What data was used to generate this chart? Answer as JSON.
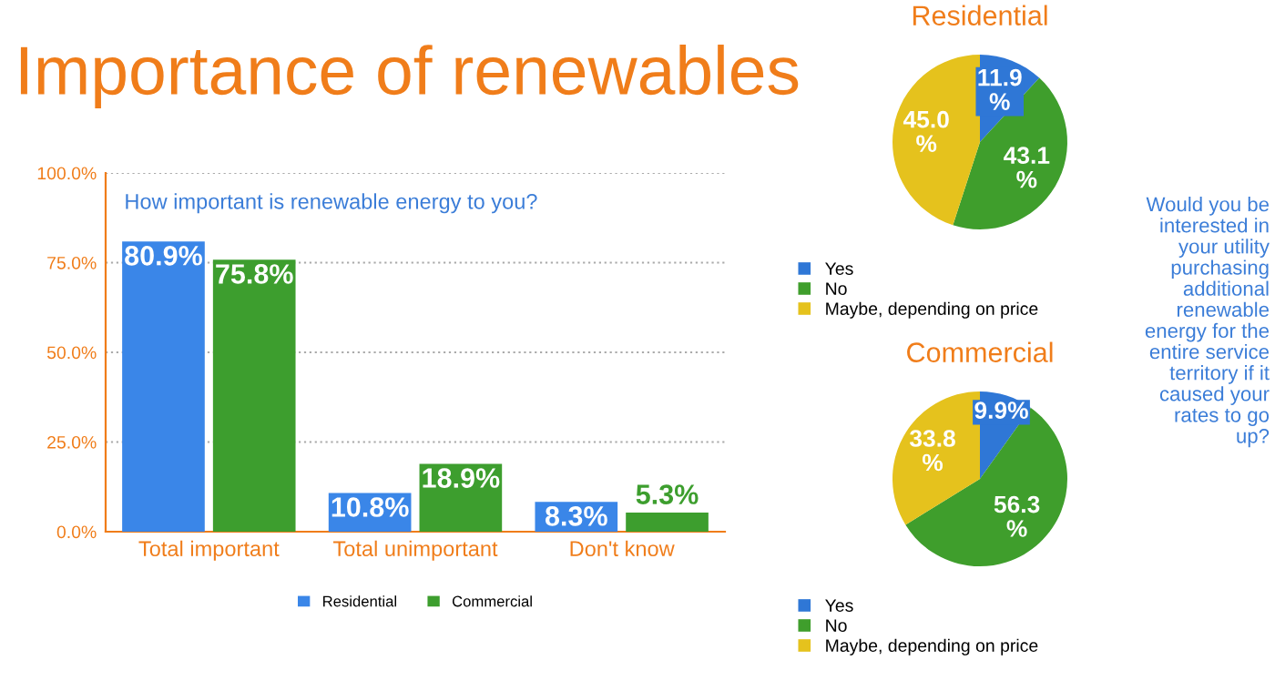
{
  "chart_data": [
    {
      "type": "bar",
      "title": "Importance of renewables",
      "subtitle": "How important is renewable energy to you?",
      "categories": [
        "Total important",
        "Total unimportant",
        "Don't know"
      ],
      "series": [
        {
          "name": "Residential",
          "color": "#3a86e8",
          "values": [
            80.9,
            10.8,
            8.3
          ],
          "value_labels": [
            "80.9%",
            "10.8%",
            "8.3%"
          ]
        },
        {
          "name": "Commercial",
          "color": "#3d9e2e",
          "values": [
            75.8,
            18.9,
            5.3
          ],
          "value_labels": [
            "75.8%",
            "18.9%",
            "5.3%"
          ]
        }
      ],
      "ylim": [
        0,
        100
      ],
      "yticks": [
        {
          "value": 0,
          "label": "0.0%"
        },
        {
          "value": 25,
          "label": "25.0%"
        },
        {
          "value": 50,
          "label": "50.0%"
        },
        {
          "value": 75,
          "label": "75.0%"
        },
        {
          "value": 100,
          "label": "100.0%"
        }
      ],
      "grid": "y",
      "legend": "bottom"
    },
    {
      "type": "pie",
      "title": "Residential",
      "categories": [
        "Yes",
        "No",
        "Maybe, depending on price"
      ],
      "values": [
        11.9,
        43.1,
        45.0
      ],
      "value_labels": [
        "11.9\n%",
        "43.1\n%",
        "45.0\n%"
      ],
      "colors": [
        "#2f77d6",
        "#3f9e2c",
        "#e5c21d"
      ],
      "legend": "bottom left"
    },
    {
      "type": "pie",
      "title": "Commercial",
      "categories": [
        "Yes",
        "No",
        "Maybe, depending on price"
      ],
      "values": [
        9.9,
        56.3,
        33.8
      ],
      "value_labels": [
        "9.9%",
        "56.3\n%",
        "33.8\n%"
      ],
      "colors": [
        "#2f77d6",
        "#3f9e2c",
        "#e5c21d"
      ],
      "legend": "bottom left"
    },
    {
      "type": "other",
      "annotations": [
        "Would you be\ninterested in\nyour utility\npurchasing\nadditional\nrenewable\nenergy for the\nentire service\nterritory if it\ncaused your\nrates to go\nup?"
      ]
    }
  ]
}
